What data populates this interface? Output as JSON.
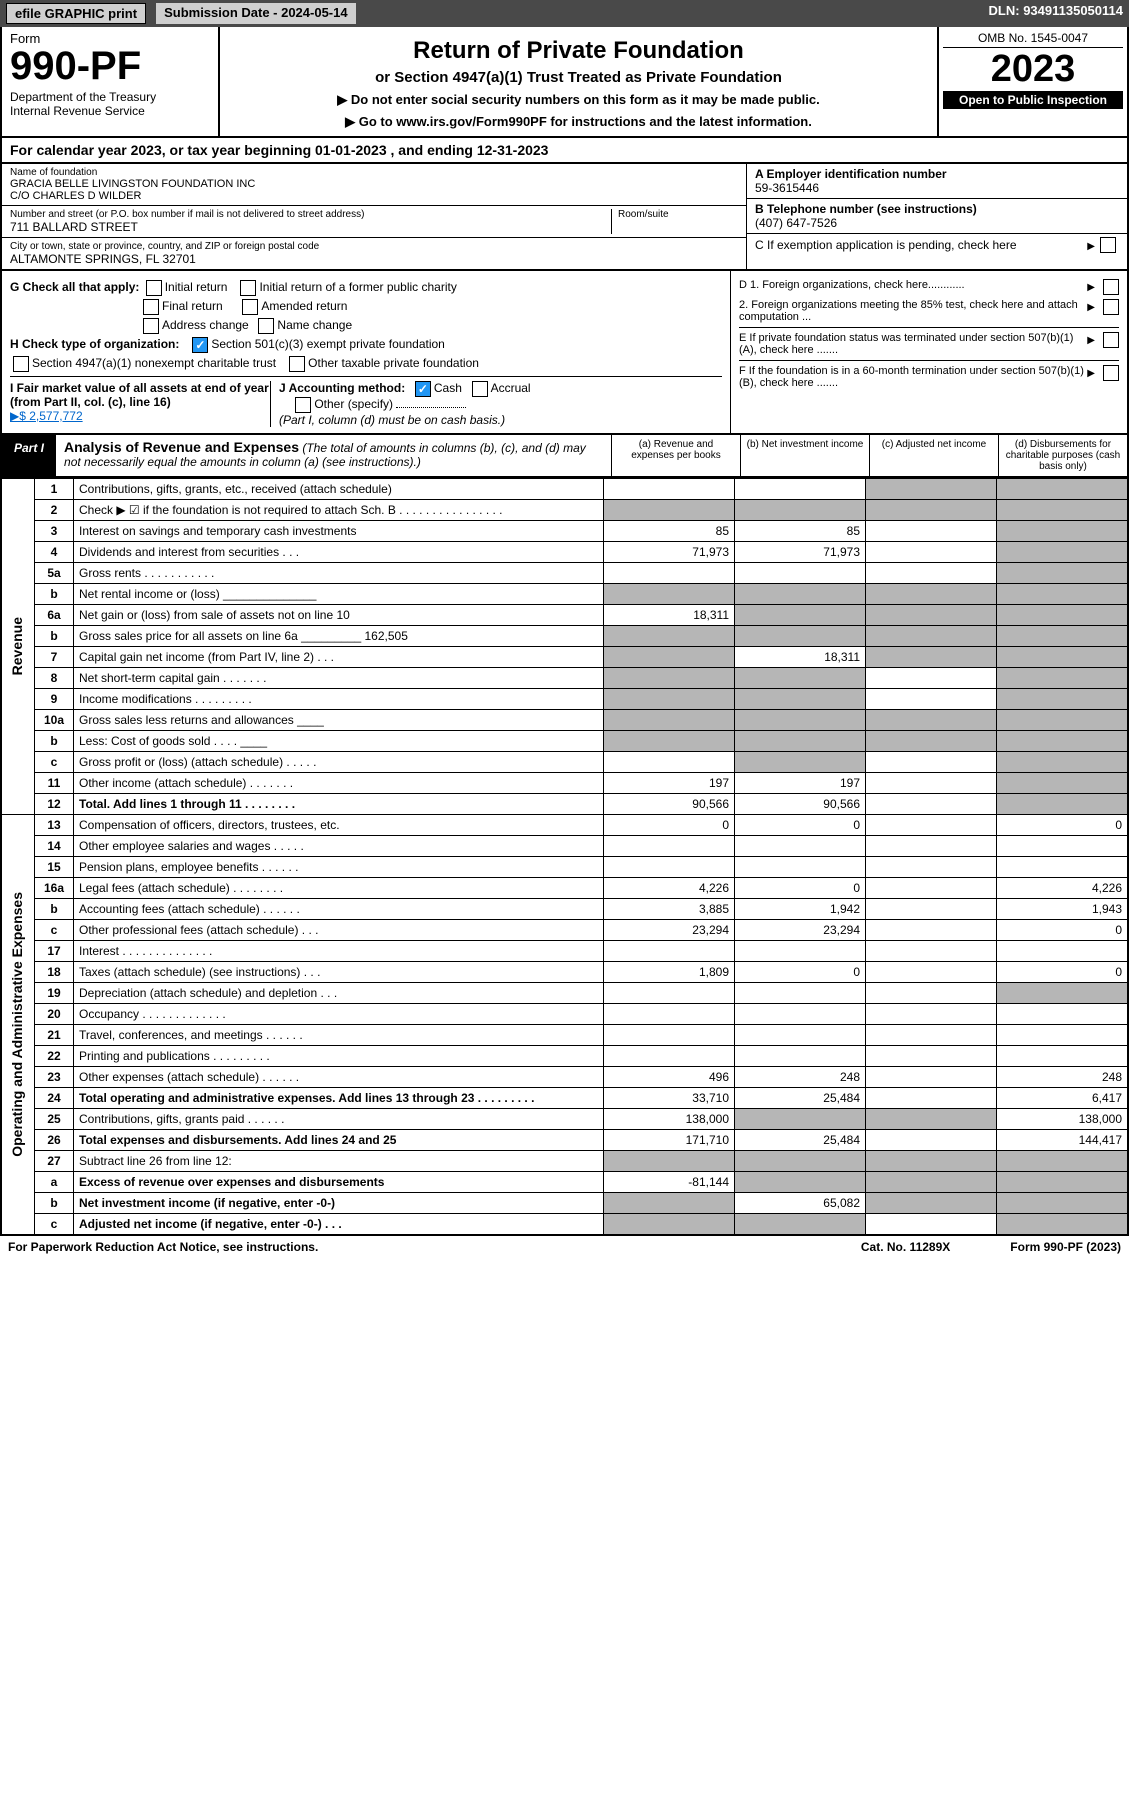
{
  "top": {
    "efile": "efile GRAPHIC print",
    "subdate_lbl": "Submission Date - 2024-05-14",
    "dln": "DLN: 93491135050114"
  },
  "header": {
    "form": "Form",
    "formnum": "990-PF",
    "dept": "Department of the Treasury\nInternal Revenue Service",
    "title": "Return of Private Foundation",
    "subtitle": "or Section 4947(a)(1) Trust Treated as Private Foundation",
    "note1": "▶ Do not enter social security numbers on this form as it may be made public.",
    "note2": "▶ Go to www.irs.gov/Form990PF for instructions and the latest information.",
    "omb": "OMB No. 1545-0047",
    "year": "2023",
    "open": "Open to Public Inspection"
  },
  "calyr": "For calendar year 2023, or tax year beginning 01-01-2023                         , and ending 12-31-2023",
  "info": {
    "name_lbl": "Name of foundation",
    "name": "GRACIA BELLE LIVINGSTON FOUNDATION INC\nC/O CHARLES D WILDER",
    "addr_lbl": "Number and street (or P.O. box number if mail is not delivered to street address)",
    "addr": "711 BALLARD STREET",
    "room_lbl": "Room/suite",
    "city_lbl": "City or town, state or province, country, and ZIP or foreign postal code",
    "city": "ALTAMONTE SPRINGS, FL  32701",
    "ein_lbl": "A Employer identification number",
    "ein": "59-3615446",
    "tel_lbl": "B Telephone number (see instructions)",
    "tel": "(407) 647-7526",
    "c": "C If exemption application is pending, check here"
  },
  "g": {
    "lbl": "G Check all that apply:",
    "o1": "Initial return",
    "o2": "Initial return of a former public charity",
    "o3": "Final return",
    "o4": "Amended return",
    "o5": "Address change",
    "o6": "Name change"
  },
  "h": {
    "lbl": "H Check type of organization:",
    "o1": "Section 501(c)(3) exempt private foundation",
    "o2": "Section 4947(a)(1) nonexempt charitable trust",
    "o3": "Other taxable private foundation"
  },
  "i": {
    "lbl": "I Fair market value of all assets at end of year (from Part II, col. (c), line 16)",
    "val": "▶$  2,577,772"
  },
  "j": {
    "lbl": "J Accounting method:",
    "o1": "Cash",
    "o2": "Accrual",
    "o3": "Other (specify)",
    "note": "(Part I, column (d) must be on cash basis.)"
  },
  "d": {
    "d1": "D 1. Foreign organizations, check here............",
    "d2": "2. Foreign organizations meeting the 85% test, check here and attach computation ...",
    "e": "E   If private foundation status was terminated under section 507(b)(1)(A), check here .......",
    "f": "F   If the foundation is in a 60-month termination under section 507(b)(1)(B), check here ......."
  },
  "part1": {
    "lbl": "Part I",
    "title": "Analysis of Revenue and Expenses",
    "desc": "(The total of amounts in columns (b), (c), and (d) may not necessarily equal the amounts in column (a) (see instructions).)",
    "ca": "(a)   Revenue and expenses per books",
    "cb": "(b)   Net investment income",
    "cc": "(c)   Adjusted net income",
    "cd": "(d)   Disbursements for charitable purposes (cash basis only)"
  },
  "sides": {
    "rev": "Revenue",
    "exp": "Operating and Administrative Expenses"
  },
  "rows": [
    {
      "n": "1",
      "d": "Contributions, gifts, grants, etc., received (attach schedule)",
      "a": "",
      "b": "",
      "c": "s",
      "dd": "s"
    },
    {
      "n": "2",
      "d": "Check ▶ ☑ if the foundation is not required to attach Sch. B     .  .  .  .  .  .  .  .  .  .  .  .  .  .  .  .",
      "a": "s",
      "b": "s",
      "c": "s",
      "dd": "s"
    },
    {
      "n": "3",
      "d": "Interest on savings and temporary cash investments",
      "a": "85",
      "b": "85",
      "c": "",
      "dd": "s"
    },
    {
      "n": "4",
      "d": "Dividends and interest from securities   .   .   .",
      "a": "71,973",
      "b": "71,973",
      "c": "",
      "dd": "s"
    },
    {
      "n": "5a",
      "d": "Gross rents   .   .   .   .   .   .   .   .   .   .   .",
      "a": "",
      "b": "",
      "c": "",
      "dd": "s"
    },
    {
      "n": "b",
      "d": "Net rental income or (loss)  ______________",
      "a": "s",
      "b": "s",
      "c": "s",
      "dd": "s"
    },
    {
      "n": "6a",
      "d": "Net gain or (loss) from sale of assets not on line 10",
      "a": "18,311",
      "b": "s",
      "c": "s",
      "dd": "s"
    },
    {
      "n": "b",
      "d": "Gross sales price for all assets on line 6a _________ 162,505",
      "a": "s",
      "b": "s",
      "c": "s",
      "dd": "s"
    },
    {
      "n": "7",
      "d": "Capital gain net income (from Part IV, line 2)   .   .   .",
      "a": "s",
      "b": "18,311",
      "c": "s",
      "dd": "s"
    },
    {
      "n": "8",
      "d": "Net short-term capital gain   .   .   .   .   .   .   .",
      "a": "s",
      "b": "s",
      "c": "",
      "dd": "s"
    },
    {
      "n": "9",
      "d": "Income modifications   .   .   .   .   .   .   .   .   .",
      "a": "s",
      "b": "s",
      "c": "",
      "dd": "s"
    },
    {
      "n": "10a",
      "d": "Gross sales less returns and allowances  ____",
      "a": "s",
      "b": "s",
      "c": "s",
      "dd": "s"
    },
    {
      "n": "b",
      "d": "Less: Cost of goods sold     .   .   .   .   ____",
      "a": "s",
      "b": "s",
      "c": "s",
      "dd": "s"
    },
    {
      "n": "c",
      "d": "Gross profit or (loss) (attach schedule)     .   .   .   .   .",
      "a": "",
      "b": "s",
      "c": "",
      "dd": "s"
    },
    {
      "n": "11",
      "d": "Other income (attach schedule)    .   .   .   .   .   .   .",
      "a": "197",
      "b": "197",
      "c": "",
      "dd": "s"
    },
    {
      "n": "12",
      "d": "Total. Add lines 1 through 11   .   .   .   .   .   .   .   .",
      "a": "90,566",
      "b": "90,566",
      "c": "",
      "dd": "s",
      "bold": true
    },
    {
      "n": "13",
      "d": "Compensation of officers, directors, trustees, etc.",
      "a": "0",
      "b": "0",
      "c": "",
      "dd": "0"
    },
    {
      "n": "14",
      "d": "Other employee salaries and wages    .   .   .   .   .",
      "a": "",
      "b": "",
      "c": "",
      "dd": ""
    },
    {
      "n": "15",
      "d": "Pension plans, employee benefits   .   .   .   .   .   .",
      "a": "",
      "b": "",
      "c": "",
      "dd": ""
    },
    {
      "n": "16a",
      "d": "Legal fees (attach schedule)   .   .   .   .   .   .   .   .",
      "a": "4,226",
      "b": "0",
      "c": "",
      "dd": "4,226"
    },
    {
      "n": "b",
      "d": "Accounting fees (attach schedule)   .   .   .   .   .   .",
      "a": "3,885",
      "b": "1,942",
      "c": "",
      "dd": "1,943"
    },
    {
      "n": "c",
      "d": "Other professional fees (attach schedule)    .   .   .",
      "a": "23,294",
      "b": "23,294",
      "c": "",
      "dd": "0"
    },
    {
      "n": "17",
      "d": "Interest   .   .   .   .   .   .   .   .   .   .   .   .   .   .",
      "a": "",
      "b": "",
      "c": "",
      "dd": ""
    },
    {
      "n": "18",
      "d": "Taxes (attach schedule) (see instructions)    .   .   .",
      "a": "1,809",
      "b": "0",
      "c": "",
      "dd": "0"
    },
    {
      "n": "19",
      "d": "Depreciation (attach schedule) and depletion    .   .   .",
      "a": "",
      "b": "",
      "c": "",
      "dd": "s"
    },
    {
      "n": "20",
      "d": "Occupancy   .   .   .   .   .   .   .   .   .   .   .   .   .",
      "a": "",
      "b": "",
      "c": "",
      "dd": ""
    },
    {
      "n": "21",
      "d": "Travel, conferences, and meetings   .   .   .   .   .   .",
      "a": "",
      "b": "",
      "c": "",
      "dd": ""
    },
    {
      "n": "22",
      "d": "Printing and publications   .   .   .   .   .   .   .   .   .",
      "a": "",
      "b": "",
      "c": "",
      "dd": ""
    },
    {
      "n": "23",
      "d": "Other expenses (attach schedule)   .   .   .   .   .   .",
      "a": "496",
      "b": "248",
      "c": "",
      "dd": "248"
    },
    {
      "n": "24",
      "d": "Total operating and administrative expenses. Add lines 13 through 23   .   .   .   .   .   .   .   .   .",
      "a": "33,710",
      "b": "25,484",
      "c": "",
      "dd": "6,417",
      "bold": true
    },
    {
      "n": "25",
      "d": "Contributions, gifts, grants paid    .   .   .   .   .   .",
      "a": "138,000",
      "b": "s",
      "c": "s",
      "dd": "138,000"
    },
    {
      "n": "26",
      "d": "Total expenses and disbursements. Add lines 24 and 25",
      "a": "171,710",
      "b": "25,484",
      "c": "",
      "dd": "144,417",
      "bold": true
    },
    {
      "n": "27",
      "d": "Subtract line 26 from line 12:",
      "a": "s",
      "b": "s",
      "c": "s",
      "dd": "s"
    },
    {
      "n": "a",
      "d": "Excess of revenue over expenses and disbursements",
      "a": "-81,144",
      "b": "s",
      "c": "s",
      "dd": "s",
      "bold": true
    },
    {
      "n": "b",
      "d": "Net investment income (if negative, enter -0-)",
      "a": "s",
      "b": "65,082",
      "c": "s",
      "dd": "s",
      "bold": true
    },
    {
      "n": "c",
      "d": "Adjusted net income (if negative, enter -0-)    .   .   .",
      "a": "s",
      "b": "s",
      "c": "",
      "dd": "s",
      "bold": true
    }
  ],
  "footer": {
    "l": "For Paperwork Reduction Act Notice, see instructions.",
    "m": "Cat. No. 11289X",
    "r": "Form 990-PF (2023)"
  }
}
